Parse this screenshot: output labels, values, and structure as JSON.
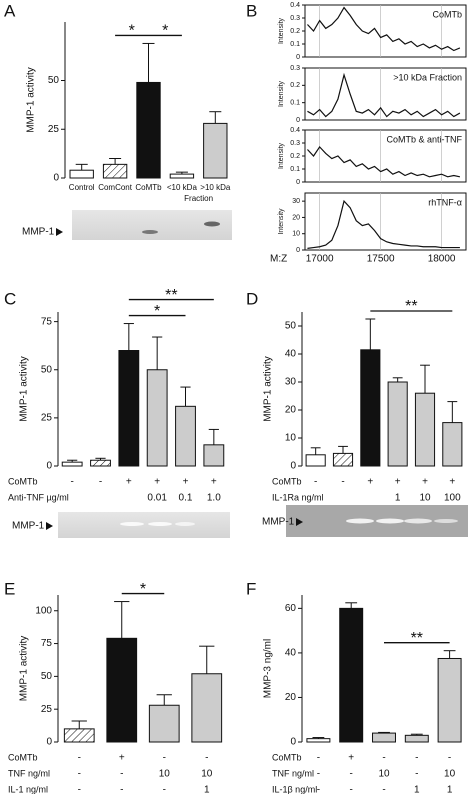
{
  "chart_data": [
    {
      "panel": "A",
      "type": "bar",
      "ylabel": "MMP-1 activity",
      "categories": [
        "Control",
        "ComCont",
        "CoMTb",
        "<10 kDa",
        ">10 kDa"
      ],
      "group_label": "Fraction",
      "values": [
        4,
        7,
        49,
        2,
        28
      ],
      "errors": [
        3,
        3,
        20,
        1,
        6
      ],
      "colors": [
        "#ffffff",
        "#ffffff",
        "#111111",
        "#ffffff",
        "#cccccc"
      ],
      "hatched": [
        false,
        true,
        false,
        false,
        false
      ],
      "ylim": [
        0,
        80
      ],
      "yticks": [
        0,
        25,
        50
      ],
      "annotations": [
        {
          "text": "*",
          "from": 1,
          "to": 2
        },
        {
          "text": "*",
          "from": 2,
          "to": 3
        }
      ],
      "blot_label": "MMP-1"
    },
    {
      "panel": "B",
      "type": "line",
      "title": "CoMTb",
      "ylabel": "Intensity",
      "color": "#111111",
      "x": [
        16900,
        16950,
        17000,
        17050,
        17100,
        17150,
        17200,
        17250,
        17300,
        17350,
        17400,
        17450,
        17500,
        17550,
        17600,
        17650,
        17700,
        17750,
        17800,
        17850,
        17900,
        17950,
        18000,
        18050,
        18100,
        18150
      ],
      "values": [
        0.25,
        0.2,
        0.28,
        0.22,
        0.25,
        0.3,
        0.38,
        0.32,
        0.25,
        0.2,
        0.18,
        0.22,
        0.15,
        0.17,
        0.12,
        0.14,
        0.1,
        0.12,
        0.08,
        0.1,
        0.07,
        0.09,
        0.06,
        0.08,
        0.05,
        0.07
      ],
      "xlim": [
        16880,
        18200
      ],
      "xticks": [
        17000,
        17500,
        18000
      ],
      "show_xtick_labels": false,
      "ylim": [
        0,
        0.4
      ],
      "yticks": [
        0,
        0.1,
        0.2,
        0.3,
        0.4
      ]
    },
    {
      "type": "line",
      "title": ">10 kDa Fraction",
      "ylabel": "Intensity",
      "color": "#111111",
      "x": [
        16900,
        16950,
        17000,
        17050,
        17100,
        17150,
        17200,
        17250,
        17300,
        17350,
        17400,
        17450,
        17500,
        17550,
        17600,
        17650,
        17700,
        17750,
        17800,
        17850,
        17900,
        17950,
        18000,
        18050,
        18100,
        18150
      ],
      "values": [
        0.05,
        0.03,
        0.06,
        0.02,
        0.05,
        0.12,
        0.26,
        0.15,
        0.05,
        0.04,
        0.06,
        0.03,
        0.07,
        0.02,
        0.05,
        0.04,
        0.06,
        0.03,
        0.05,
        0.02,
        0.04,
        0.06,
        0.03,
        0.05,
        0.02,
        0.04
      ],
      "xlim": [
        16880,
        18200
      ],
      "xticks": [
        17000,
        17500,
        18000
      ],
      "show_xtick_labels": false,
      "ylim": [
        0,
        0.3
      ],
      "yticks": [
        0,
        0.1,
        0.2,
        0.3
      ]
    },
    {
      "type": "line",
      "title": "CoMTb & anti-TNF",
      "ylabel": "Intensity",
      "color": "#111111",
      "x": [
        16900,
        16950,
        17000,
        17050,
        17100,
        17150,
        17200,
        17250,
        17300,
        17350,
        17400,
        17450,
        17500,
        17550,
        17600,
        17650,
        17700,
        17750,
        17800,
        17850,
        17900,
        17950,
        18000,
        18050,
        18100,
        18150
      ],
      "values": [
        0.25,
        0.2,
        0.27,
        0.22,
        0.18,
        0.2,
        0.15,
        0.17,
        0.12,
        0.14,
        0.1,
        0.12,
        0.08,
        0.1,
        0.06,
        0.08,
        0.05,
        0.07,
        0.05,
        0.06,
        0.04,
        0.05,
        0.06,
        0.04,
        0.05,
        0.04
      ],
      "xlim": [
        16880,
        18200
      ],
      "xticks": [
        17000,
        17500,
        18000
      ],
      "show_xtick_labels": false,
      "ylim": [
        0,
        0.4
      ],
      "yticks": [
        0,
        0.1,
        0.2,
        0.3,
        0.4
      ]
    },
    {
      "type": "line",
      "title": "rhTNF-α",
      "ylabel": "Intensity",
      "xlabel": "M:Z",
      "color": "#111111",
      "x": [
        16900,
        16950,
        17000,
        17050,
        17100,
        17150,
        17200,
        17250,
        17300,
        17350,
        17400,
        17450,
        17500,
        17550,
        17600,
        17650,
        17700,
        17750,
        17800,
        17850,
        17900,
        17950,
        18000,
        18050,
        18100,
        18150
      ],
      "values": [
        1,
        1.5,
        2,
        3,
        6,
        15,
        30,
        26,
        18,
        15,
        16,
        12,
        7,
        5,
        4,
        3.5,
        3,
        2.5,
        2.5,
        2,
        2,
        2,
        1.5,
        1.5,
        1.5,
        1.5
      ],
      "xlim": [
        16880,
        18200
      ],
      "xticks": [
        17000,
        17500,
        18000
      ],
      "show_xtick_labels": true,
      "ylim": [
        0,
        35
      ],
      "yticks": [
        0,
        10,
        20,
        30
      ]
    },
    {
      "panel": "C",
      "type": "bar",
      "ylabel": "MMP-1 activity",
      "values": [
        2,
        3,
        60,
        50,
        31,
        11
      ],
      "errors": [
        1,
        1,
        14,
        17,
        10,
        8
      ],
      "colors": [
        "#ffffff",
        "#ffffff",
        "#111111",
        "#cccccc",
        "#cccccc",
        "#cccccc"
      ],
      "hatched": [
        false,
        true,
        false,
        false,
        false,
        false
      ],
      "ylim": [
        0,
        80
      ],
      "yticks": [
        0,
        25,
        50,
        75
      ],
      "annotations": [
        {
          "text": "**",
          "from": 2,
          "to": 5
        },
        {
          "text": "*",
          "from": 2,
          "to": 4
        }
      ],
      "conditions": [
        {
          "label": "CoMTb",
          "values": [
            "-",
            "-",
            "+",
            "+",
            "+",
            "+"
          ]
        },
        {
          "label": "Anti-TNF µg/ml",
          "values": [
            null,
            null,
            null,
            "0.01",
            "0.1",
            "1.0"
          ]
        }
      ],
      "blot_label": "MMP-1"
    },
    {
      "panel": "D",
      "type": "bar",
      "ylabel": "MMP-1 activity",
      "values": [
        4,
        4.5,
        41.5,
        30,
        26,
        15.5
      ],
      "errors": [
        2.5,
        2.5,
        11,
        1.5,
        10,
        7.5
      ],
      "colors": [
        "#ffffff",
        "#ffffff",
        "#111111",
        "#cccccc",
        "#cccccc",
        "#cccccc"
      ],
      "hatched": [
        false,
        true,
        false,
        false,
        false,
        false
      ],
      "ylim": [
        0,
        55
      ],
      "yticks": [
        0,
        10,
        20,
        30,
        40,
        50
      ],
      "annotations": [
        {
          "text": "**",
          "from": 2,
          "to": 5
        }
      ],
      "conditions": [
        {
          "label": "CoMTb",
          "values": [
            "-",
            "-",
            "+",
            "+",
            "+",
            "+"
          ]
        },
        {
          "label": "IL-1Ra ng/ml",
          "values": [
            null,
            null,
            null,
            "1",
            "10",
            "100"
          ]
        }
      ],
      "blot_label": "MMP-1"
    },
    {
      "panel": "E",
      "type": "bar",
      "ylabel": "MMP-1 activity",
      "values": [
        10,
        79,
        28,
        52
      ],
      "errors": [
        6,
        28,
        8,
        21
      ],
      "colors": [
        "#ffffff",
        "#111111",
        "#cccccc",
        "#cccccc"
      ],
      "hatched": [
        true,
        false,
        false,
        false
      ],
      "ylim": [
        0,
        112
      ],
      "yticks": [
        0,
        25,
        50,
        75,
        100
      ],
      "annotations": [
        {
          "text": "*",
          "from": 1,
          "to": 2
        }
      ],
      "conditions": [
        {
          "label": "CoMTb",
          "values": [
            "-",
            "+",
            "-",
            "-"
          ]
        },
        {
          "label": "TNF ng/ml",
          "values": [
            "-",
            "-",
            "10",
            "10"
          ]
        },
        {
          "label": "IL-1 ng/ml",
          "values": [
            "-",
            "-",
            "-",
            "1"
          ]
        }
      ]
    },
    {
      "panel": "F",
      "type": "bar",
      "ylabel": "MMP-3 ng/ml",
      "values": [
        1.5,
        60,
        4,
        3,
        37.5
      ],
      "errors": [
        0.5,
        2.5,
        0.3,
        0.5,
        3.5
      ],
      "colors": [
        "#ffffff",
        "#111111",
        "#cccccc",
        "#cccccc",
        "#cccccc"
      ],
      "hatched": [
        false,
        false,
        false,
        false,
        false
      ],
      "ylim": [
        0,
        66
      ],
      "yticks": [
        0,
        20,
        40,
        60
      ],
      "annotations": [
        {
          "text": "**",
          "from": 2,
          "to": 4
        }
      ],
      "conditions": [
        {
          "label": "CoMTb",
          "values": [
            "-",
            "+",
            "-",
            "-",
            "-"
          ]
        },
        {
          "label": "TNF ng/ml",
          "values": [
            "-",
            "-",
            "10",
            "-",
            "10"
          ]
        },
        {
          "label": "IL-1β ng/ml",
          "values": [
            "-",
            "-",
            "-",
            "1",
            "1"
          ]
        }
      ]
    }
  ]
}
